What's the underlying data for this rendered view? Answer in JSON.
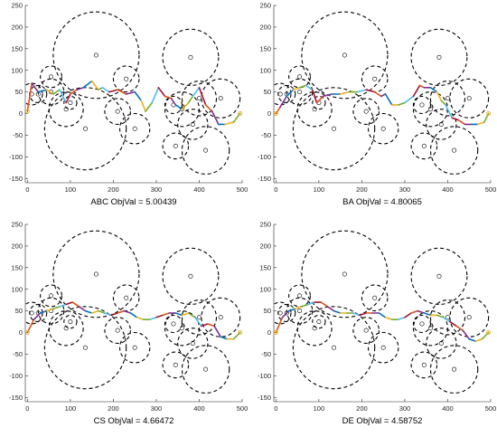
{
  "figure": {
    "colors": {
      "axis": "#262626",
      "circle": "#000000",
      "path_segments": [
        "#d95319",
        "#7e2f8e",
        "#0072bd",
        "#edb120",
        "#77ac30",
        "#4dbeee",
        "#a2142f"
      ]
    }
  },
  "chart_data": [
    {
      "type": "line",
      "label": "ABC  ObjVal = 5.00439",
      "xlim": [
        -5,
        500
      ],
      "ylim": [
        -160,
        250
      ],
      "xticks": [
        "0",
        "100",
        "200",
        "300",
        "400",
        "500"
      ],
      "yticks": [
        "-150",
        "-100",
        "-50",
        "0",
        "50",
        "100",
        "150",
        "200",
        "250"
      ],
      "grid": false,
      "path": {
        "x": [
          0,
          10,
          25,
          45,
          60,
          75,
          90,
          100,
          115,
          130,
          150,
          165,
          175,
          190,
          210,
          230,
          250,
          265,
          275,
          290,
          305,
          320,
          335,
          345,
          360,
          375,
          385,
          400,
          415,
          430,
          445,
          460,
          480,
          495
        ],
        "y": [
          5,
          70,
          50,
          55,
          45,
          55,
          25,
          45,
          55,
          60,
          75,
          55,
          60,
          50,
          55,
          45,
          50,
          30,
          5,
          25,
          60,
          40,
          35,
          20,
          10,
          25,
          40,
          60,
          20,
          5,
          -25,
          -25,
          -20,
          0
        ]
      }
    },
    {
      "type": "line",
      "label": "BA  ObjVal = 4.80065",
      "xlim": [
        -5,
        500
      ],
      "ylim": [
        -160,
        250
      ],
      "xticks": [
        "0",
        "100",
        "200",
        "300",
        "400",
        "500"
      ],
      "yticks": [
        "-150",
        "-100",
        "-50",
        "0",
        "50",
        "100",
        "150",
        "200",
        "250"
      ],
      "grid": false,
      "path": {
        "x": [
          0,
          10,
          25,
          40,
          55,
          70,
          85,
          95,
          110,
          130,
          150,
          170,
          190,
          210,
          230,
          245,
          255,
          270,
          285,
          300,
          320,
          335,
          345,
          360,
          375,
          385,
          395,
          410,
          425,
          440,
          455,
          470,
          485,
          495
        ],
        "y": [
          0,
          15,
          40,
          55,
          60,
          65,
          55,
          25,
          40,
          45,
          45,
          50,
          50,
          55,
          50,
          40,
          45,
          20,
          20,
          25,
          40,
          65,
          60,
          60,
          50,
          30,
          20,
          -10,
          -15,
          -25,
          -25,
          -25,
          -20,
          0
        ]
      }
    },
    {
      "type": "line",
      "label": "CS  ObjVal = 4.66472",
      "xlim": [
        -5,
        500
      ],
      "ylim": [
        -160,
        250
      ],
      "xticks": [
        "0",
        "100",
        "200",
        "300",
        "400",
        "500"
      ],
      "yticks": [
        "-150",
        "-100",
        "-50",
        "0",
        "50",
        "100",
        "150",
        "200",
        "250"
      ],
      "grid": false,
      "path": {
        "x": [
          0,
          15,
          30,
          45,
          60,
          75,
          90,
          105,
          120,
          135,
          150,
          165,
          180,
          195,
          210,
          225,
          240,
          255,
          270,
          285,
          300,
          315,
          330,
          345,
          360,
          375,
          390,
          405,
          420,
          435,
          450,
          465,
          480,
          495
        ],
        "y": [
          0,
          30,
          45,
          50,
          55,
          60,
          65,
          70,
          60,
          50,
          45,
          50,
          45,
          40,
          45,
          50,
          45,
          35,
          30,
          30,
          35,
          40,
          45,
          45,
          40,
          45,
          35,
          15,
          20,
          15,
          -10,
          -15,
          -15,
          0
        ]
      }
    },
    {
      "type": "line",
      "label": "DE  ObjVal = 4.58752",
      "xlim": [
        -5,
        500
      ],
      "ylim": [
        -160,
        250
      ],
      "xticks": [
        "0",
        "100",
        "200",
        "300",
        "400",
        "500"
      ],
      "yticks": [
        "-150",
        "-100",
        "-50",
        "0",
        "50",
        "100",
        "150",
        "200",
        "250"
      ],
      "grid": false,
      "path": {
        "x": [
          0,
          15,
          30,
          45,
          60,
          75,
          90,
          105,
          120,
          135,
          150,
          165,
          180,
          195,
          210,
          225,
          240,
          255,
          270,
          285,
          300,
          315,
          330,
          345,
          360,
          375,
          390,
          405,
          420,
          435,
          450,
          465,
          480,
          495
        ],
        "y": [
          0,
          35,
          50,
          55,
          60,
          65,
          70,
          70,
          60,
          50,
          45,
          45,
          45,
          40,
          45,
          45,
          45,
          35,
          30,
          30,
          35,
          45,
          50,
          45,
          40,
          40,
          35,
          25,
          15,
          5,
          -15,
          -20,
          -15,
          0
        ]
      }
    }
  ],
  "obstacles": {
    "x": [
      160,
      380,
      230,
      135,
      55,
      55,
      25,
      100,
      90,
      210,
      250,
      340,
      360,
      400,
      415,
      385,
      345,
      450,
      10
    ],
    "y": [
      135,
      130,
      80,
      -35,
      85,
      50,
      45,
      25,
      10,
      5,
      -35,
      20,
      10,
      35,
      -85,
      -25,
      -75,
      35,
      45
    ],
    "r": [
      100,
      65,
      30,
      95,
      25,
      30,
      20,
      15,
      40,
      30,
      35,
      20,
      40,
      40,
      55,
      35,
      30,
      45,
      25
    ]
  }
}
